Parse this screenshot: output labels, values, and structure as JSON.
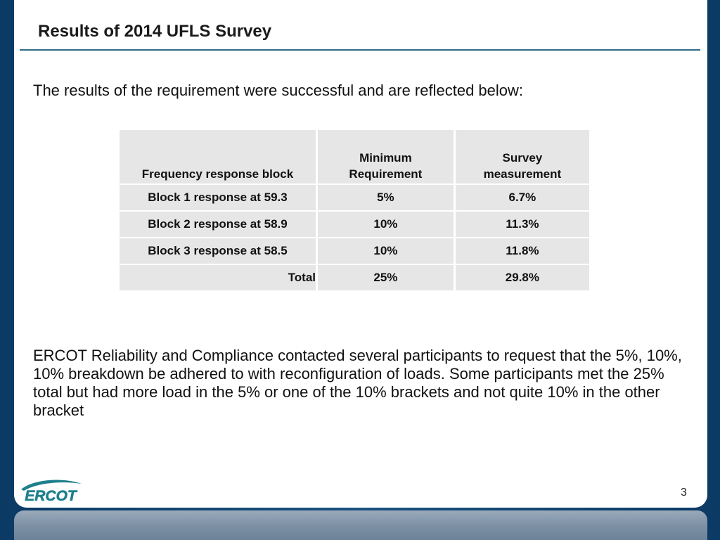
{
  "slide": {
    "title": "Results of 2014 UFLS Survey",
    "intro": "The results of the requirement were successful and are reflected below:",
    "page_number": "3",
    "logo_text": "ERCOT"
  },
  "table": {
    "headers": {
      "col1": "Frequency response block",
      "col2_line1": "Minimum",
      "col2_line2": "Requirement",
      "col3_line1": "Survey",
      "col3_line2": "measurement"
    },
    "rows": [
      {
        "block": "Block 1 response at 59.3",
        "minimum": "5%",
        "survey": "6.7%"
      },
      {
        "block": "Block 2 response at 58.9",
        "minimum": "10%",
        "survey": "11.3%"
      },
      {
        "block": "Block 3 response at 58.5",
        "minimum": "10%",
        "survey": "11.8%"
      },
      {
        "block": "Total",
        "minimum": "25%",
        "survey": "29.8%"
      }
    ]
  },
  "body": {
    "paragraph": "ERCOT Reliability and Compliance contacted several participants to request that the 5%, 10%, 10% breakdown be adhered to with reconfiguration of loads. Some participants met the 25% total but had more load in the 5% or one of the 10% brackets and not quite 10% in the other bracket"
  },
  "colors": {
    "frame": "#0c3b66",
    "title_rule": "#2c6b86",
    "table_fill": "#e6e6e6",
    "logo_teal": "#1f7f8c"
  }
}
